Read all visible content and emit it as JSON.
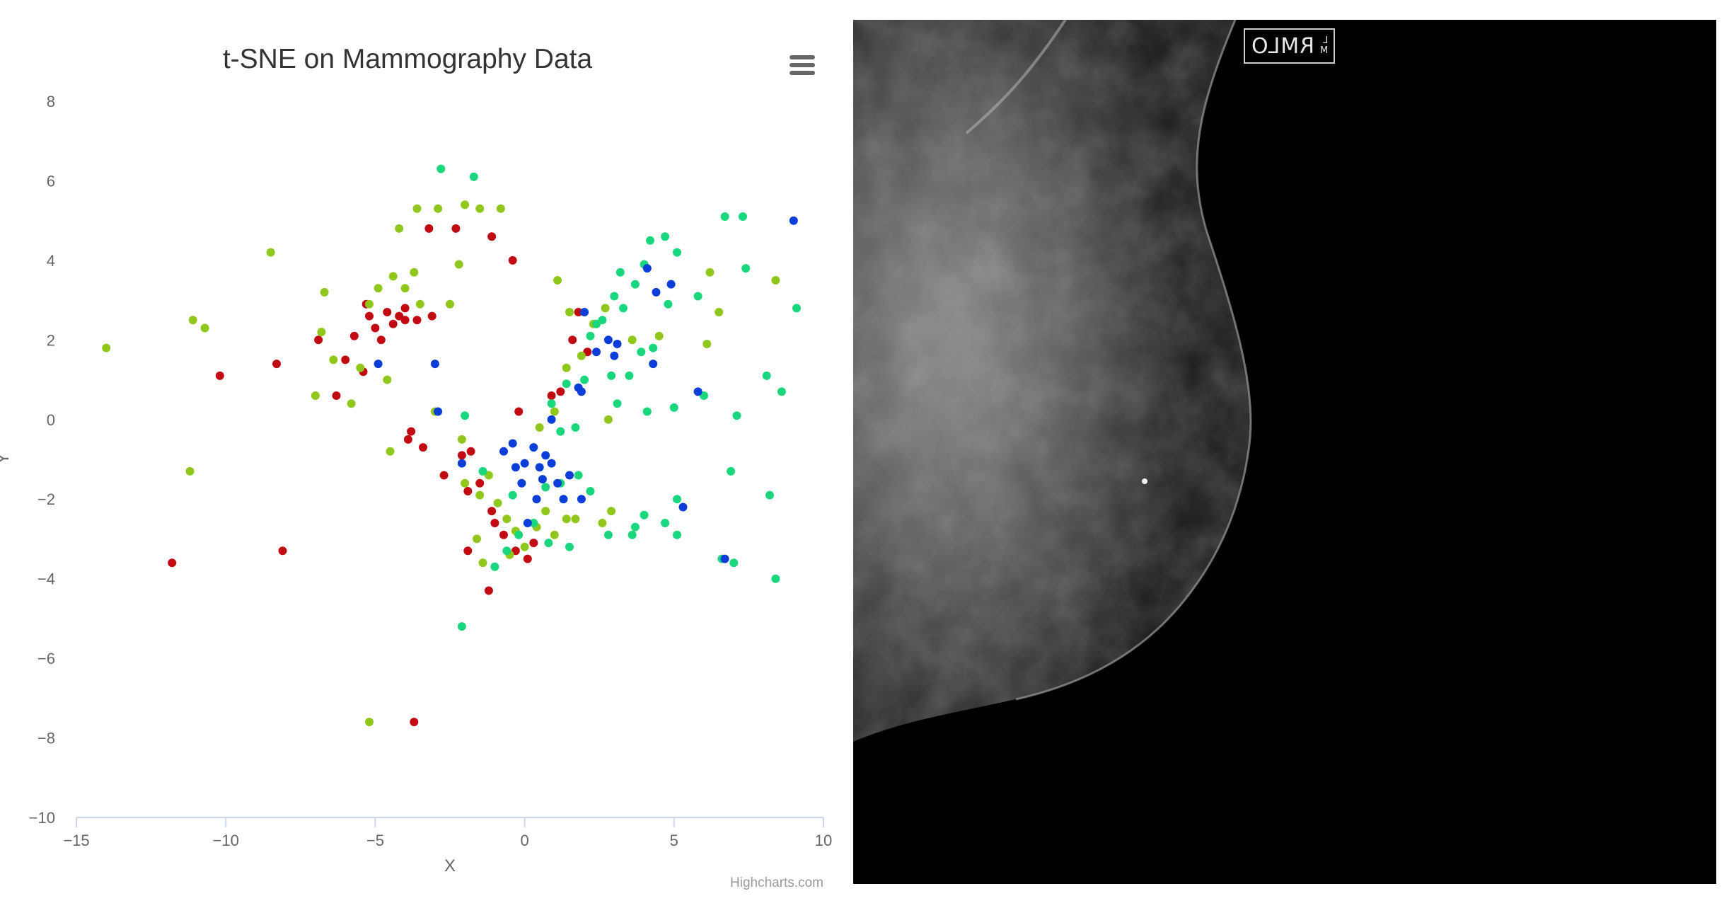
{
  "chart_data": {
    "type": "scatter",
    "title": "t-SNE on Mammography Data",
    "xlabel": "X",
    "ylabel": "Y",
    "xlim": [
      -15,
      10
    ],
    "ylim": [
      -10,
      8
    ],
    "x_ticks": [
      -15,
      -10,
      -5,
      0,
      5,
      10
    ],
    "y_ticks": [
      -10,
      -8,
      -6,
      -4,
      -2,
      0,
      2,
      4,
      6,
      8
    ],
    "grid": false,
    "legend": "none",
    "credit": "Highcharts.com",
    "series": [
      {
        "color": "#c10a12",
        "points": [
          [
            -10.2,
            1.1
          ],
          [
            -8.1,
            -3.3
          ],
          [
            -11.8,
            -3.6
          ],
          [
            -3.7,
            -7.6
          ],
          [
            -8.3,
            1.4
          ],
          [
            -6.9,
            2.0
          ],
          [
            -6.3,
            0.6
          ],
          [
            -6.0,
            1.5
          ],
          [
            -5.7,
            2.1
          ],
          [
            -5.3,
            2.9
          ],
          [
            -5.2,
            2.6
          ],
          [
            -5.0,
            2.3
          ],
          [
            -4.8,
            2.0
          ],
          [
            -4.6,
            2.7
          ],
          [
            -4.4,
            2.4
          ],
          [
            -4.2,
            2.6
          ],
          [
            -4.0,
            2.8
          ],
          [
            -3.6,
            2.5
          ],
          [
            -3.1,
            2.6
          ],
          [
            -5.4,
            1.2
          ],
          [
            -3.2,
            4.8
          ],
          [
            -2.3,
            4.8
          ],
          [
            -1.1,
            4.6
          ],
          [
            -0.4,
            4.0
          ],
          [
            -3.8,
            -0.3
          ],
          [
            -3.4,
            -0.7
          ],
          [
            -2.7,
            -1.4
          ],
          [
            -2.1,
            -0.9
          ],
          [
            -1.8,
            -0.8
          ],
          [
            -1.5,
            -1.6
          ],
          [
            -1.1,
            -2.3
          ],
          [
            -1.0,
            -2.6
          ],
          [
            -0.7,
            -2.9
          ],
          [
            -0.3,
            -3.3
          ],
          [
            0.1,
            -3.5
          ],
          [
            0.3,
            -3.1
          ],
          [
            -1.9,
            -3.3
          ],
          [
            -1.2,
            -4.3
          ],
          [
            -0.2,
            0.2
          ],
          [
            0.9,
            0.6
          ],
          [
            1.2,
            0.7
          ],
          [
            1.6,
            2.0
          ],
          [
            1.8,
            2.7
          ],
          [
            2.1,
            1.7
          ],
          [
            -1.9,
            -1.8
          ],
          [
            -4.0,
            2.5
          ],
          [
            -3.9,
            -0.5
          ]
        ]
      },
      {
        "color": "#90c71d",
        "points": [
          [
            -14.0,
            1.8
          ],
          [
            -11.1,
            2.5
          ],
          [
            -10.7,
            2.3
          ],
          [
            -11.2,
            -1.3
          ],
          [
            -8.5,
            4.2
          ],
          [
            -6.7,
            3.2
          ],
          [
            -6.8,
            2.2
          ],
          [
            -6.4,
            1.5
          ],
          [
            -7.0,
            0.6
          ],
          [
            -5.8,
            0.4
          ],
          [
            -5.5,
            1.3
          ],
          [
            -5.2,
            2.9
          ],
          [
            -4.9,
            3.3
          ],
          [
            -4.6,
            1.0
          ],
          [
            -4.4,
            3.6
          ],
          [
            -4.0,
            3.3
          ],
          [
            -3.7,
            3.7
          ],
          [
            -3.5,
            2.9
          ],
          [
            -3.0,
            0.2
          ],
          [
            -3.6,
            5.3
          ],
          [
            -2.9,
            5.3
          ],
          [
            -2.0,
            5.4
          ],
          [
            -1.5,
            5.3
          ],
          [
            -0.8,
            5.3
          ],
          [
            -4.2,
            4.8
          ],
          [
            -2.2,
            3.9
          ],
          [
            -2.5,
            2.9
          ],
          [
            -5.2,
            -7.6
          ],
          [
            -4.5,
            -0.8
          ],
          [
            -2.0,
            -1.6
          ],
          [
            -1.5,
            -1.9
          ],
          [
            -1.2,
            -1.4
          ],
          [
            -0.9,
            -2.1
          ],
          [
            -0.6,
            -2.5
          ],
          [
            -0.3,
            -2.8
          ],
          [
            0.0,
            -3.2
          ],
          [
            0.4,
            -2.7
          ],
          [
            0.7,
            -2.3
          ],
          [
            1.0,
            -2.9
          ],
          [
            1.4,
            -2.5
          ],
          [
            1.7,
            -2.5
          ],
          [
            2.6,
            -2.6
          ],
          [
            2.9,
            -2.3
          ],
          [
            -1.4,
            -3.6
          ],
          [
            -0.5,
            -3.4
          ],
          [
            1.1,
            3.5
          ],
          [
            1.5,
            2.7
          ],
          [
            1.9,
            1.6
          ],
          [
            2.3,
            2.4
          ],
          [
            2.7,
            2.8
          ],
          [
            1.4,
            1.3
          ],
          [
            1.0,
            0.2
          ],
          [
            0.5,
            -0.2
          ],
          [
            6.2,
            3.7
          ],
          [
            6.5,
            2.7
          ],
          [
            6.1,
            1.9
          ],
          [
            8.4,
            3.5
          ],
          [
            3.6,
            2.0
          ],
          [
            4.5,
            2.1
          ],
          [
            2.8,
            0.0
          ],
          [
            -2.1,
            -0.5
          ],
          [
            -1.6,
            -3.0
          ]
        ]
      },
      {
        "color": "#1ad67c",
        "points": [
          [
            -2.8,
            6.3
          ],
          [
            -1.7,
            6.1
          ],
          [
            -2.1,
            -5.2
          ],
          [
            6.7,
            5.1
          ],
          [
            7.3,
            5.1
          ],
          [
            7.4,
            3.8
          ],
          [
            9.1,
            2.8
          ],
          [
            8.6,
            0.7
          ],
          [
            8.1,
            1.1
          ],
          [
            8.2,
            -1.9
          ],
          [
            8.4,
            -4.0
          ],
          [
            6.9,
            -1.3
          ],
          [
            7.1,
            0.1
          ],
          [
            6.0,
            0.6
          ],
          [
            5.8,
            3.1
          ],
          [
            5.1,
            4.2
          ],
          [
            4.7,
            4.6
          ],
          [
            4.2,
            4.5
          ],
          [
            4.0,
            3.9
          ],
          [
            3.7,
            3.4
          ],
          [
            3.2,
            3.7
          ],
          [
            3.0,
            3.1
          ],
          [
            2.6,
            2.5
          ],
          [
            2.2,
            2.1
          ],
          [
            3.9,
            1.7
          ],
          [
            4.3,
            1.8
          ],
          [
            4.8,
            2.9
          ],
          [
            3.5,
            1.1
          ],
          [
            3.1,
            0.4
          ],
          [
            4.1,
            0.2
          ],
          [
            5.0,
            0.3
          ],
          [
            5.1,
            -2.0
          ],
          [
            4.7,
            -2.6
          ],
          [
            4.0,
            -2.4
          ],
          [
            3.7,
            -2.7
          ],
          [
            2.8,
            -2.9
          ],
          [
            1.5,
            -3.2
          ],
          [
            0.8,
            -3.1
          ],
          [
            0.3,
            -2.6
          ],
          [
            -0.2,
            -2.9
          ],
          [
            -0.6,
            -3.3
          ],
          [
            -1.0,
            -3.7
          ],
          [
            0.7,
            -1.7
          ],
          [
            1.2,
            -1.6
          ],
          [
            1.8,
            -1.4
          ],
          [
            2.2,
            -1.8
          ],
          [
            0.9,
            0.4
          ],
          [
            1.4,
            0.9
          ],
          [
            2.0,
            1.0
          ],
          [
            1.7,
            -0.2
          ],
          [
            -1.4,
            -1.3
          ],
          [
            -0.4,
            -1.9
          ],
          [
            3.3,
            2.8
          ],
          [
            2.9,
            1.1
          ],
          [
            2.4,
            2.4
          ],
          [
            6.6,
            -3.5
          ],
          [
            5.1,
            -2.9
          ],
          [
            7.0,
            -3.6
          ],
          [
            3.6,
            -2.9
          ],
          [
            1.2,
            -0.3
          ],
          [
            -2.0,
            0.1
          ]
        ]
      },
      {
        "color": "#0b3ed8",
        "points": [
          [
            9.0,
            5.0
          ],
          [
            4.1,
            3.8
          ],
          [
            4.4,
            3.2
          ],
          [
            4.9,
            3.4
          ],
          [
            4.3,
            1.4
          ],
          [
            2.8,
            2.0
          ],
          [
            3.1,
            1.9
          ],
          [
            2.4,
            1.7
          ],
          [
            2.0,
            2.7
          ],
          [
            3.0,
            1.6
          ],
          [
            1.8,
            0.8
          ],
          [
            1.9,
            0.7
          ],
          [
            0.9,
            0.0
          ],
          [
            -3.0,
            1.4
          ],
          [
            -4.9,
            1.4
          ],
          [
            -2.9,
            0.2
          ],
          [
            -0.7,
            -0.8
          ],
          [
            -0.4,
            -0.6
          ],
          [
            0.0,
            -1.1
          ],
          [
            0.3,
            -0.7
          ],
          [
            0.5,
            -1.2
          ],
          [
            0.7,
            -0.9
          ],
          [
            0.9,
            -1.1
          ],
          [
            1.1,
            -1.6
          ],
          [
            1.5,
            -1.4
          ],
          [
            -0.1,
            -1.6
          ],
          [
            0.6,
            -1.5
          ],
          [
            1.3,
            -2.0
          ],
          [
            0.1,
            -2.6
          ],
          [
            -2.1,
            -1.1
          ],
          [
            1.9,
            -2.0
          ],
          [
            5.3,
            -2.2
          ],
          [
            6.7,
            -3.5
          ],
          [
            5.8,
            0.7
          ],
          [
            -0.3,
            -1.2
          ],
          [
            0.4,
            -2.0
          ]
        ]
      }
    ]
  },
  "ui": {
    "menu_icon": "hamburger-menu-icon"
  },
  "image": {
    "view_label": "RMLO",
    "orientation_top": "L",
    "orientation_bottom": "M"
  }
}
